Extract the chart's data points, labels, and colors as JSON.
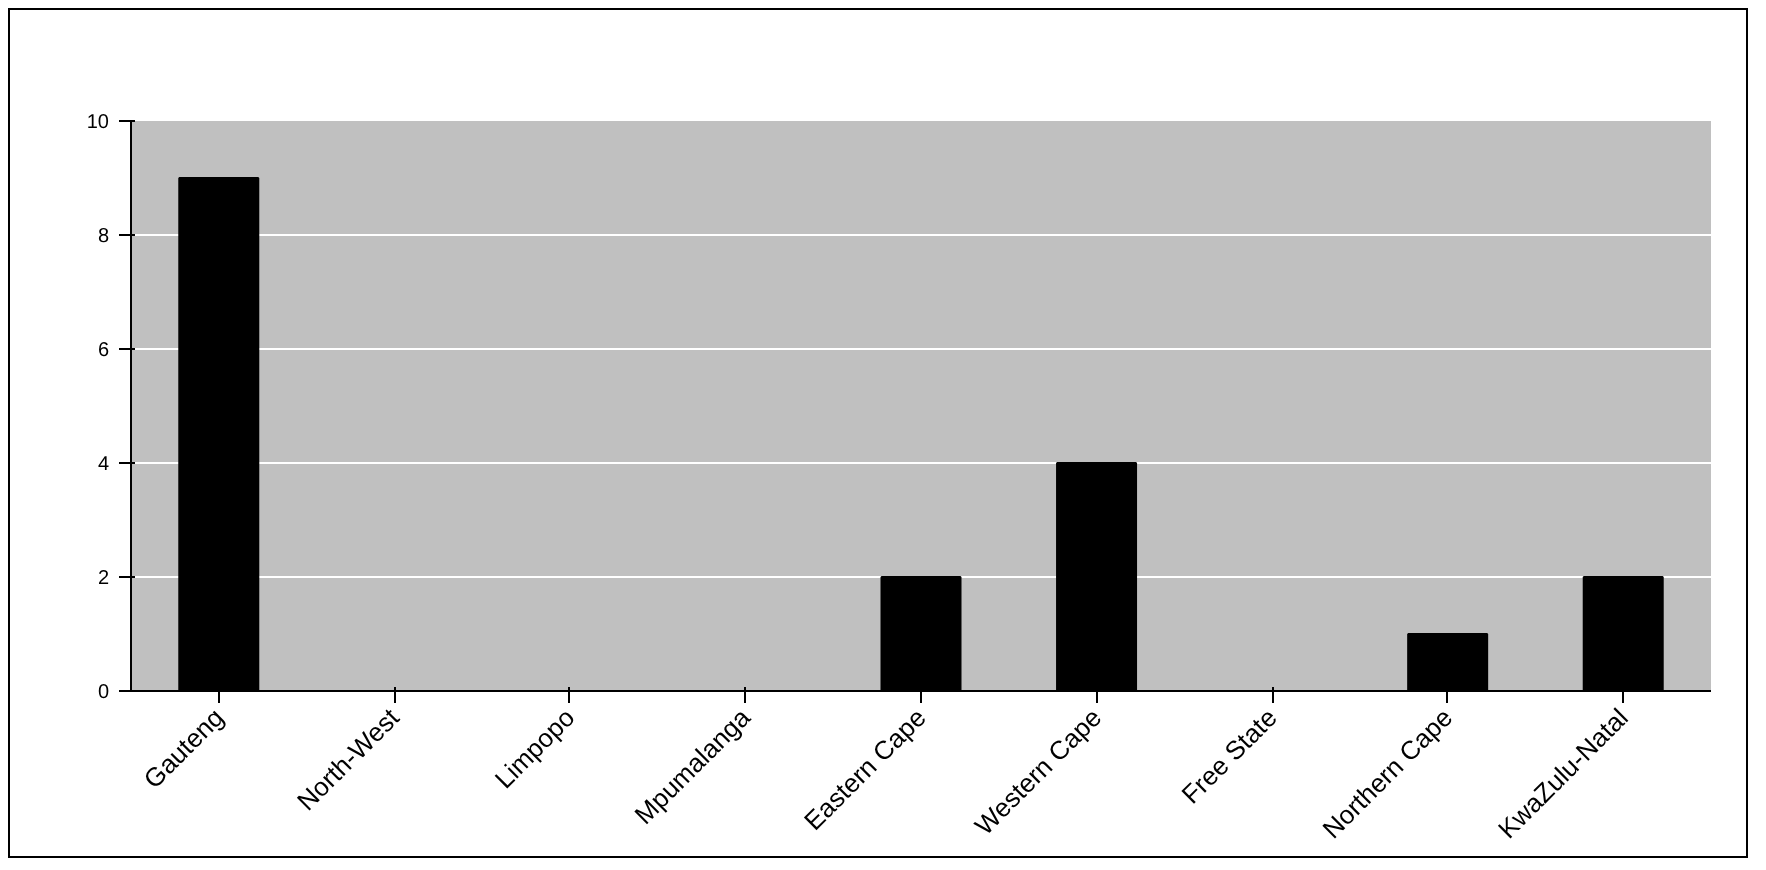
{
  "chart_data": {
    "type": "bar",
    "categories": [
      "Gauteng",
      "North-West",
      "Limpopo",
      "Mpumalanga",
      "Eastern Cape",
      "Western Cape",
      "Free State",
      "Northern Cape",
      "KwaZulu-Natal"
    ],
    "values": [
      9,
      0,
      0,
      0,
      2,
      4,
      0,
      1,
      2
    ],
    "color": "#000000",
    "ylim": [
      0,
      10
    ],
    "yticks": [
      0,
      2,
      4,
      6,
      8,
      10
    ],
    "grid": "y"
  }
}
